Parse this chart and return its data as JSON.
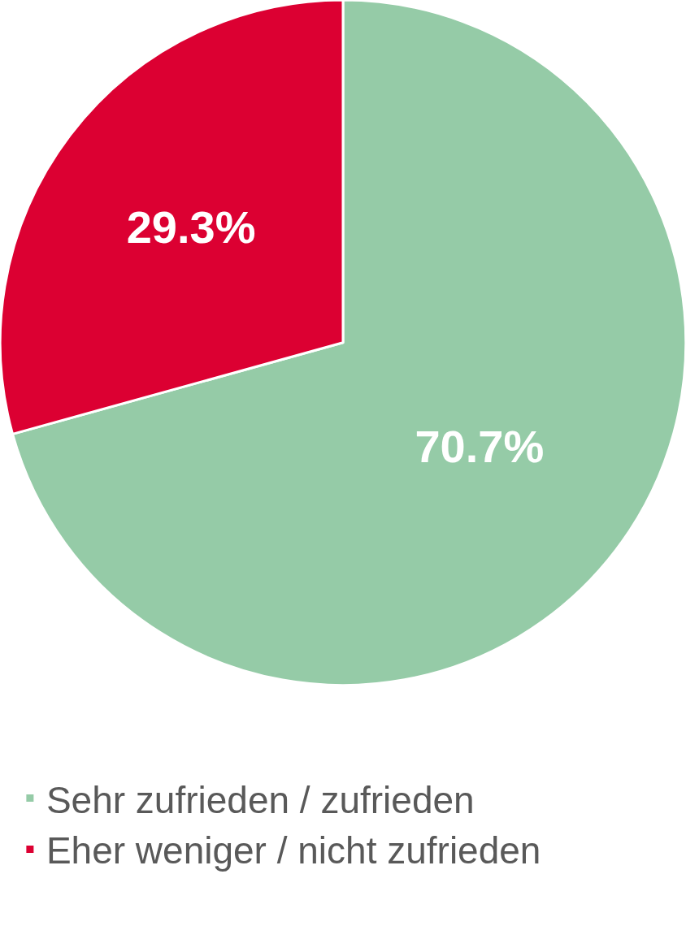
{
  "chart_data": {
    "type": "pie",
    "categories": [
      "Sehr zufrieden / zufrieden",
      "Eher weniger / nicht zufrieden"
    ],
    "values": [
      70.7,
      29.3
    ],
    "colors": [
      "#95cba7",
      "#dc0032"
    ],
    "value_labels": [
      "70.7%",
      "29.3%"
    ],
    "legend": "bottom"
  }
}
